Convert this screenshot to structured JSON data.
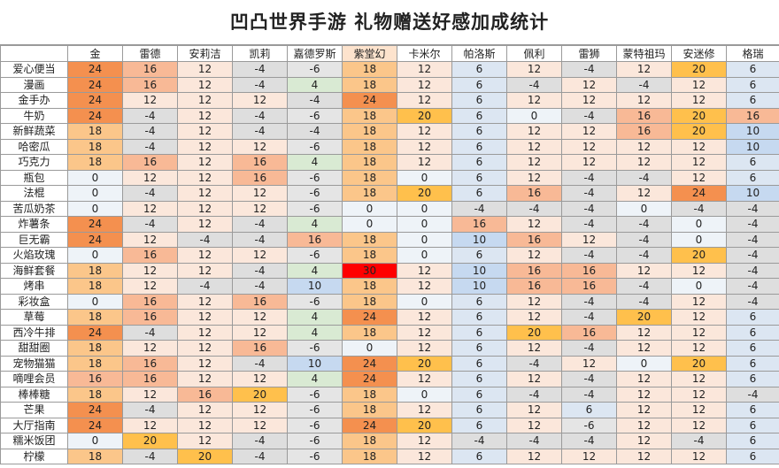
{
  "title": "凹凸世界手游 礼物赠送好感加成统计",
  "columns": [
    "金",
    "雷德",
    "安莉洁",
    "凯莉",
    "嘉德罗斯",
    "紫堂幻",
    "卡米尔",
    "帕洛斯",
    "佩利",
    "雷狮",
    "蒙特祖玛",
    "安迷修",
    "格瑞"
  ],
  "highlighted_column": "紫堂幻",
  "colors": {
    "30": "#ff0000",
    "24": "#f4904f",
    "20": "#ffc04c",
    "18": "#fbc68a",
    "16": "#f8b996",
    "12": "#fbe7db",
    "10": "#c6d9f0",
    "6": "#dce6f2",
    "4": "#d9ead3",
    "0": "#eef3f8",
    "-4": "#dedede",
    "-6": "#e5e5e5",
    "header_highlight": "#fde3cd"
  },
  "rows": [
    {
      "label": "爱心便当",
      "values": [
        24,
        16,
        12,
        -4,
        -6,
        18,
        12,
        6,
        12,
        -4,
        12,
        20,
        6
      ]
    },
    {
      "label": "漫画",
      "values": [
        24,
        16,
        12,
        -4,
        4,
        18,
        12,
        6,
        -4,
        12,
        -4,
        12,
        6
      ]
    },
    {
      "label": "金手办",
      "values": [
        24,
        12,
        12,
        12,
        -4,
        24,
        12,
        6,
        12,
        12,
        12,
        12,
        6
      ]
    },
    {
      "label": "牛奶",
      "values": [
        24,
        -4,
        12,
        -4,
        -6,
        18,
        20,
        6,
        0,
        -4,
        16,
        20,
        16
      ]
    },
    {
      "label": "新鲜蔬菜",
      "values": [
        18,
        -4,
        12,
        -4,
        -4,
        18,
        12,
        6,
        12,
        12,
        16,
        20,
        10
      ]
    },
    {
      "label": "哈密瓜",
      "values": [
        18,
        -4,
        12,
        12,
        -6,
        18,
        12,
        6,
        12,
        12,
        12,
        12,
        10
      ]
    },
    {
      "label": "巧克力",
      "values": [
        18,
        16,
        12,
        16,
        4,
        18,
        12,
        6,
        12,
        12,
        12,
        12,
        6
      ]
    },
    {
      "label": "瓶包",
      "values": [
        0,
        12,
        12,
        16,
        -6,
        18,
        0,
        6,
        12,
        -4,
        -4,
        12,
        6
      ]
    },
    {
      "label": "法棍",
      "values": [
        0,
        -4,
        12,
        12,
        -6,
        18,
        20,
        6,
        16,
        -4,
        12,
        24,
        10
      ]
    },
    {
      "label": "苦瓜奶茶",
      "values": [
        0,
        12,
        12,
        12,
        -6,
        0,
        0,
        -4,
        -4,
        -4,
        0,
        -4,
        -4
      ]
    },
    {
      "label": "炸薯条",
      "values": [
        24,
        -4,
        12,
        -4,
        4,
        0,
        0,
        16,
        12,
        -4,
        -4,
        0,
        -4
      ]
    },
    {
      "label": "巨无霸",
      "values": [
        24,
        12,
        -4,
        -4,
        16,
        18,
        0,
        10,
        16,
        12,
        -4,
        0,
        -4
      ]
    },
    {
      "label": "火焰玫瑰",
      "values": [
        0,
        16,
        12,
        12,
        -6,
        18,
        0,
        6,
        12,
        -4,
        -4,
        20,
        -4
      ]
    },
    {
      "label": "海鲜套餐",
      "values": [
        18,
        12,
        12,
        -4,
        4,
        30,
        12,
        10,
        16,
        16,
        12,
        12,
        -4
      ]
    },
    {
      "label": "烤串",
      "values": [
        18,
        12,
        -4,
        -4,
        10,
        18,
        12,
        10,
        16,
        16,
        -4,
        0,
        -4
      ]
    },
    {
      "label": "彩妆盒",
      "values": [
        0,
        16,
        12,
        16,
        -6,
        18,
        0,
        6,
        12,
        -4,
        -4,
        12,
        -4
      ]
    },
    {
      "label": "草莓",
      "values": [
        18,
        16,
        12,
        12,
        4,
        24,
        12,
        6,
        12,
        -4,
        20,
        12,
        6
      ]
    },
    {
      "label": "西冷牛排",
      "values": [
        24,
        -4,
        12,
        12,
        4,
        18,
        12,
        6,
        20,
        16,
        12,
        12,
        6
      ]
    },
    {
      "label": "甜甜圈",
      "values": [
        18,
        12,
        12,
        16,
        -6,
        0,
        12,
        6,
        12,
        -4,
        12,
        12,
        6
      ]
    },
    {
      "label": "宠物猫猫",
      "values": [
        18,
        16,
        12,
        -4,
        10,
        24,
        20,
        6,
        -4,
        12,
        0,
        20,
        6
      ]
    },
    {
      "label": "嘀哩会员",
      "values": [
        16,
        16,
        12,
        12,
        4,
        24,
        12,
        6,
        12,
        -4,
        12,
        12,
        6
      ]
    },
    {
      "label": "棒棒糖",
      "values": [
        18,
        12,
        16,
        20,
        -6,
        18,
        0,
        6,
        -4,
        -4,
        12,
        12,
        -4
      ]
    },
    {
      "label": "芒果",
      "values": [
        24,
        -4,
        12,
        12,
        -6,
        18,
        12,
        6,
        12,
        6,
        12,
        12,
        6
      ]
    },
    {
      "label": "大厅指南",
      "values": [
        24,
        12,
        12,
        12,
        -6,
        24,
        20,
        6,
        12,
        -6,
        12,
        12,
        6
      ]
    },
    {
      "label": "糯米饭团",
      "values": [
        0,
        20,
        12,
        -4,
        -6,
        18,
        12,
        -4,
        -4,
        -4,
        12,
        -4,
        6
      ]
    },
    {
      "label": "柠檬",
      "values": [
        18,
        -4,
        20,
        -4,
        -6,
        18,
        12,
        6,
        12,
        12,
        12,
        12,
        6
      ]
    }
  ]
}
